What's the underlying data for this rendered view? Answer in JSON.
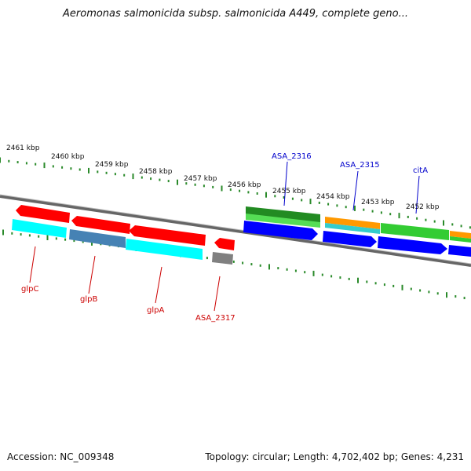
{
  "title": "Aeromonas salmonicida subsp. salmonicida A449, complete geno...",
  "footer": {
    "accession": "Accession: NC_009348",
    "summary": "Topology: circular; Length: 4,702,402 bp; Genes: 4,231"
  },
  "colors": {
    "red": "#ff0000",
    "cyan": "#00ffff",
    "steelblue": "#4682b4",
    "gray": "#808080",
    "green": "#33cc33",
    "darkgreen": "#228b22",
    "blue": "#0000ff",
    "orange": "#ff9900",
    "tick": "#2a8a2a",
    "backbone": "#888888",
    "label_forward": "#0000cc",
    "label_reverse": "#cc0000"
  },
  "ticks": [
    "2461 kbp",
    "2460 kbp",
    "2459 kbp",
    "2458 kbp",
    "2457 kbp",
    "2456 kbp",
    "2455 kbp",
    "2454 kbp",
    "2453 kbp",
    "2452 kbp"
  ],
  "gene_labels_forward": [
    "ASA_2316",
    "ASA_2315",
    "citA"
  ],
  "gene_labels_reverse": [
    "glpC",
    "glpB",
    "glpA",
    "ASA_2317"
  ]
}
